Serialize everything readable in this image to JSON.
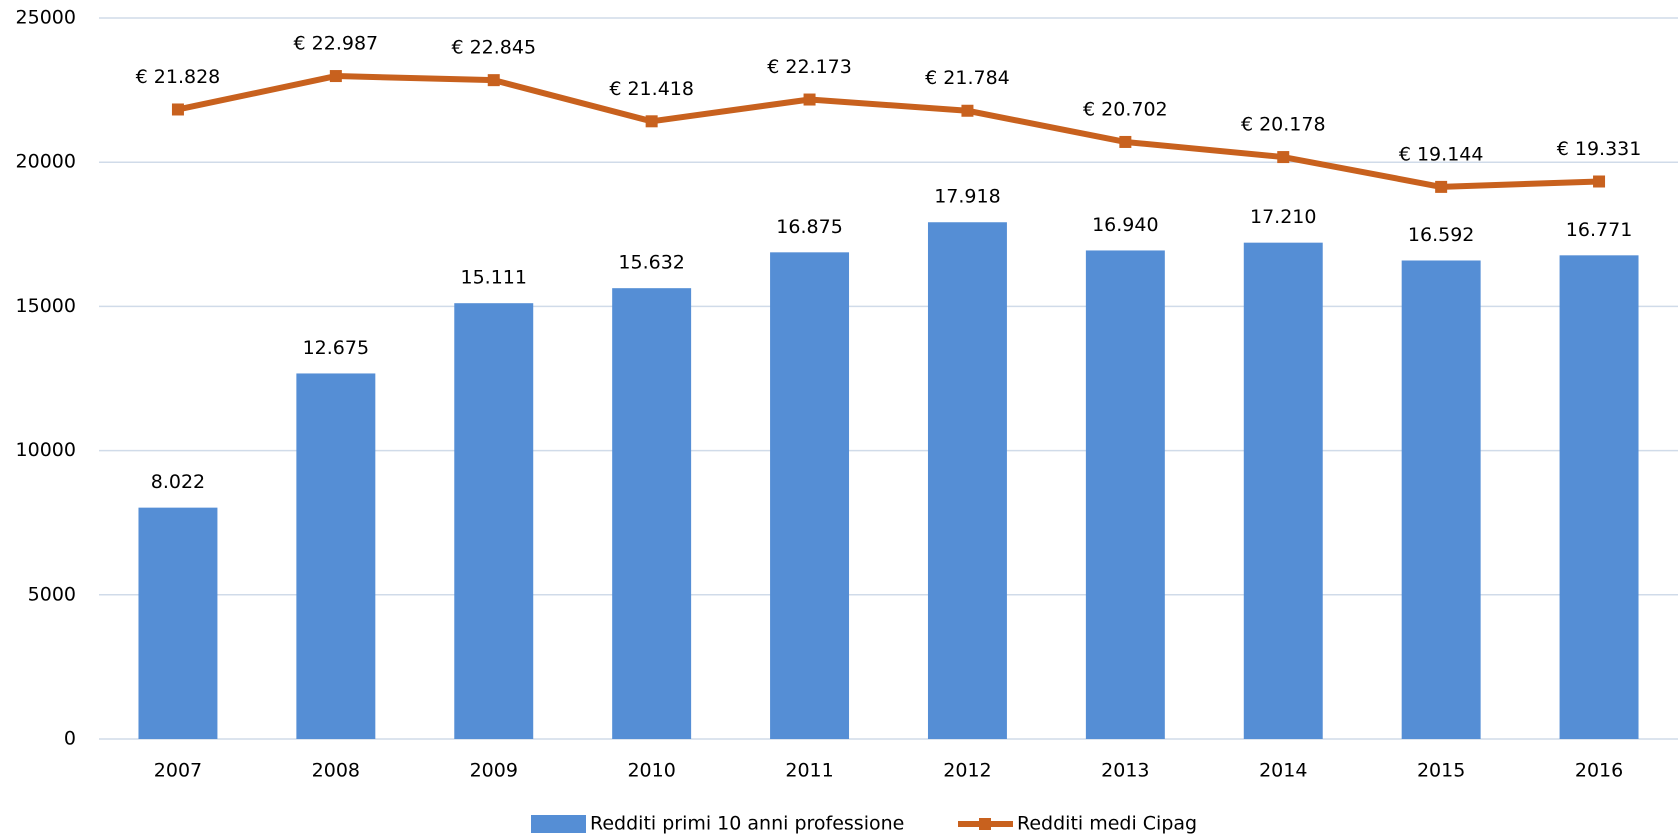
{
  "chart_data": {
    "type": "bar",
    "categories": [
      "2007",
      "2008",
      "2009",
      "2010",
      "2011",
      "2012",
      "2013",
      "2014",
      "2015",
      "2016"
    ],
    "series": [
      {
        "name": "Redditi primi 10 anni professione",
        "type": "bar",
        "color": "#558ed5",
        "values": [
          8022,
          12675,
          15111,
          15632,
          16875,
          17918,
          16940,
          17210,
          16592,
          16771
        ],
        "value_labels": [
          "8.022",
          "12.675",
          "15.111",
          "15.632",
          "16.875",
          "17.918",
          "16.940",
          "17.210",
          "16.592",
          "16.771"
        ]
      },
      {
        "name": "Redditi medi Cipag",
        "type": "line",
        "color": "#c8611e",
        "values": [
          21828,
          22987,
          22845,
          21418,
          22173,
          21784,
          20702,
          20178,
          19144,
          19331
        ],
        "value_labels": [
          "€ 21.828",
          "€ 22.987",
          "€ 22.845",
          "€ 21.418",
          "€ 22.173",
          "€ 21.784",
          "€ 20.702",
          "€ 20.178",
          "€ 19.144",
          "€ 19.331"
        ]
      }
    ],
    "ylim": [
      0,
      25000
    ],
    "yticks": [
      0,
      5000,
      10000,
      15000,
      20000,
      25000
    ],
    "grid": true,
    "legend": "bottom"
  }
}
